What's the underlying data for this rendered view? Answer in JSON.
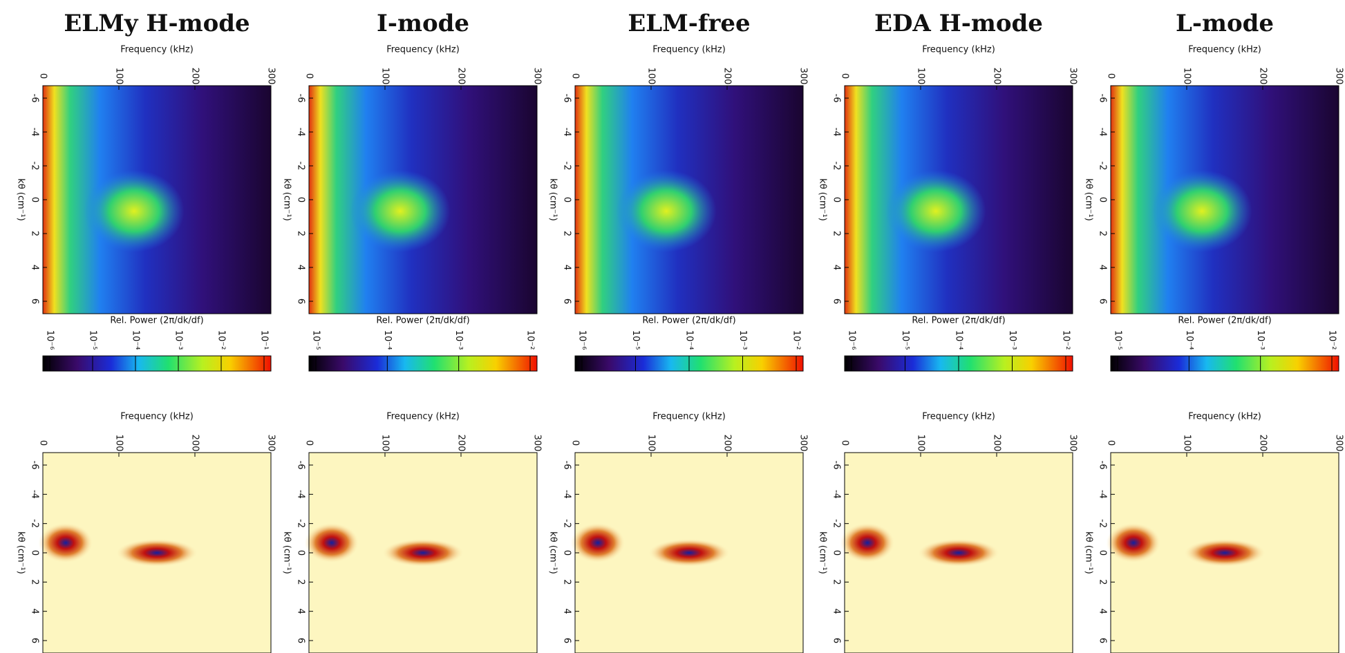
{
  "panels": [
    {
      "title": "ELMy H-mode",
      "top": {
        "xlabel": "Frequency (kHz)",
        "xticks": [
          "0",
          "100",
          "200",
          "300"
        ],
        "ylabel": "kθ (cm⁻¹)",
        "yticks": [
          "-6",
          "-4",
          "-2",
          "0",
          "2",
          "4",
          "6"
        ]
      },
      "colorbar": {
        "label": "Rel. Power (2π/dk/df)",
        "ticks": [
          "10⁻⁶",
          "10⁻⁵",
          "10⁻⁴",
          "10⁻³",
          "10⁻²",
          "10⁻¹"
        ]
      },
      "bottom": {
        "xlabel": "Frequency (kHz)",
        "xticks": [
          "0",
          "100",
          "200",
          "300"
        ],
        "ylabel": "kθ (cm⁻¹)",
        "yticks": [
          "-6",
          "-4",
          "-2",
          "0",
          "2",
          "4",
          "6"
        ]
      }
    },
    {
      "title": "I-mode",
      "top": {
        "xlabel": "Frequency (kHz)",
        "xticks": [
          "0",
          "100",
          "200",
          "300"
        ],
        "ylabel": "kθ (cm⁻¹)",
        "yticks": [
          "-6",
          "-4",
          "-2",
          "0",
          "2",
          "4",
          "6"
        ]
      },
      "colorbar": {
        "label": "Rel. Power (2π/dk/df)",
        "ticks": [
          "10⁻⁵",
          "10⁻⁴",
          "10⁻³",
          "10⁻²"
        ]
      },
      "bottom": {
        "xlabel": "Frequency (kHz)",
        "xticks": [
          "0",
          "100",
          "200",
          "300"
        ],
        "ylabel": "kθ (cm⁻¹)",
        "yticks": [
          "-6",
          "-4",
          "-2",
          "0",
          "2",
          "4",
          "6"
        ]
      }
    },
    {
      "title": "ELM-free",
      "top": {
        "xlabel": "Frequency (kHz)",
        "xticks": [
          "0",
          "100",
          "200",
          "300"
        ],
        "ylabel": "kθ (cm⁻¹)",
        "yticks": [
          "-6",
          "-4",
          "-2",
          "0",
          "2",
          "4",
          "6"
        ]
      },
      "colorbar": {
        "label": "Rel. Power (2π/dk/df)",
        "ticks": [
          "10⁻⁶",
          "10⁻⁵",
          "10⁻⁴",
          "10⁻³",
          "10⁻²"
        ]
      },
      "bottom": {
        "xlabel": "Frequency (kHz)",
        "xticks": [
          "0",
          "100",
          "200",
          "300"
        ],
        "ylabel": "kθ (cm⁻¹)",
        "yticks": [
          "-6",
          "-4",
          "-2",
          "0",
          "2",
          "4",
          "6"
        ]
      }
    },
    {
      "title": "EDA H-mode",
      "top": {
        "xlabel": "Frequency (kHz)",
        "xticks": [
          "0",
          "100",
          "200",
          "300"
        ],
        "ylabel": "kθ (cm⁻¹)",
        "yticks": [
          "-6",
          "-4",
          "-2",
          "0",
          "2",
          "4",
          "6"
        ]
      },
      "colorbar": {
        "label": "Rel. Power (2π/dk/df)",
        "ticks": [
          "10⁻⁶",
          "10⁻⁵",
          "10⁻⁴",
          "10⁻³",
          "10⁻²"
        ]
      },
      "bottom": {
        "xlabel": "Frequency (kHz)",
        "xticks": [
          "0",
          "100",
          "200",
          "300"
        ],
        "ylabel": "kθ (cm⁻¹)",
        "yticks": [
          "-6",
          "-4",
          "-2",
          "0",
          "2",
          "4",
          "6"
        ]
      }
    },
    {
      "title": "L-mode",
      "top": {
        "xlabel": "Frequency (kHz)",
        "xticks": [
          "0",
          "100",
          "200",
          "300"
        ],
        "ylabel": "kθ (cm⁻¹)",
        "yticks": [
          "-6",
          "-4",
          "-2",
          "0",
          "2",
          "4",
          "6"
        ]
      },
      "colorbar": {
        "label": "Rel. Power (2π/dk/df)",
        "ticks": [
          "10⁻⁵",
          "10⁻⁴",
          "10⁻³",
          "10⁻²"
        ]
      },
      "bottom": {
        "xlabel": "Frequency (kHz)",
        "xticks": [
          "0",
          "100",
          "200",
          "300"
        ],
        "ylabel": "kθ (cm⁻¹)",
        "yticks": [
          "-6",
          "-4",
          "-2",
          "0",
          "2",
          "4",
          "6"
        ]
      }
    }
  ]
}
